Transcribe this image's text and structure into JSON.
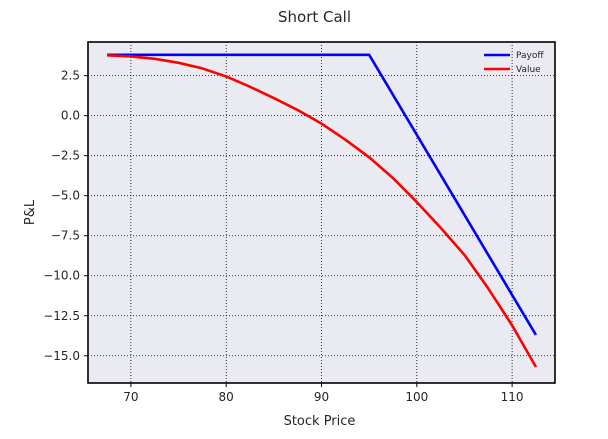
{
  "chart_data": {
    "type": "line",
    "title": "Short Call",
    "xlabel": "Stock Price",
    "ylabel": "P&L",
    "xlim": [
      65.5,
      114.5
    ],
    "ylim": [
      -16.7,
      4.6
    ],
    "xticks": [
      70,
      80,
      90,
      100,
      110
    ],
    "yticks": [
      2.5,
      0.0,
      -2.5,
      -5.0,
      -7.5,
      -10.0,
      -12.5,
      -15.0
    ],
    "ytick_labels": [
      "2.5",
      "0.0",
      "−2.5",
      "−5.0",
      "−7.5",
      "−10.0",
      "−12.5",
      "−15.0"
    ],
    "grid": true,
    "legend_position": "top-right",
    "background_color": "#eaeaf2",
    "series": [
      {
        "name": "Payoff",
        "color": "#0000ff",
        "x": [
          67.5,
          95.0,
          112.5
        ],
        "y": [
          3.8,
          3.8,
          -13.7
        ]
      },
      {
        "name": "Value",
        "color": "#ff0000",
        "x": [
          67.5,
          70,
          72.5,
          75,
          77.5,
          80,
          82.5,
          85,
          87.5,
          90,
          92.5,
          95,
          97.5,
          100,
          102.5,
          105,
          107.5,
          110,
          112.5
        ],
        "y": [
          3.77,
          3.7,
          3.55,
          3.3,
          2.95,
          2.45,
          1.8,
          1.1,
          0.35,
          -0.5,
          -1.5,
          -2.6,
          -3.9,
          -5.4,
          -7.0,
          -8.7,
          -10.8,
          -13.1,
          -15.7
        ]
      }
    ]
  }
}
